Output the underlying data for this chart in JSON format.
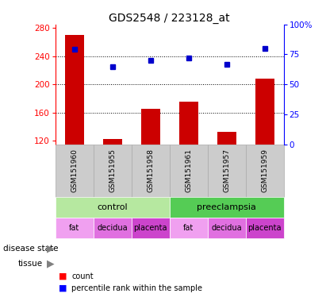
{
  "title": "GDS2548 / 223128_at",
  "samples": [
    "GSM151960",
    "GSM151955",
    "GSM151958",
    "GSM151961",
    "GSM151957",
    "GSM151959"
  ],
  "counts": [
    270,
    122,
    165,
    175,
    133,
    208
  ],
  "percentiles": [
    79,
    65,
    70,
    72,
    67,
    80
  ],
  "ylim_left": [
    115,
    285
  ],
  "ylim_right": [
    0,
    100
  ],
  "yticks_left": [
    120,
    160,
    200,
    240,
    280
  ],
  "yticks_right": [
    0,
    25,
    50,
    75,
    100
  ],
  "ytick_right_labels": [
    "0",
    "25",
    "50",
    "75",
    "100%"
  ],
  "bar_color": "#cc0000",
  "dot_color": "#0000cc",
  "bar_width": 0.5,
  "grid_lines": [
    160,
    200,
    240
  ],
  "disease_state": [
    {
      "label": "control",
      "span": [
        0,
        3
      ],
      "color": "#b6e8a0"
    },
    {
      "label": "preeclampsia",
      "span": [
        3,
        6
      ],
      "color": "#55cc55"
    }
  ],
  "tissue": [
    {
      "label": "fat",
      "span": [
        0,
        1
      ],
      "color": "#f0a0f0"
    },
    {
      "label": "decidua",
      "span": [
        1,
        2
      ],
      "color": "#e070e0"
    },
    {
      "label": "placenta",
      "span": [
        2,
        3
      ],
      "color": "#cc44cc"
    },
    {
      "label": "fat",
      "span": [
        3,
        4
      ],
      "color": "#f0a0f0"
    },
    {
      "label": "decidua",
      "span": [
        4,
        5
      ],
      "color": "#e070e0"
    },
    {
      "label": "placenta",
      "span": [
        5,
        6
      ],
      "color": "#cc44cc"
    }
  ],
  "sample_bg_color": "#cccccc",
  "sample_border_color": "#aaaaaa"
}
